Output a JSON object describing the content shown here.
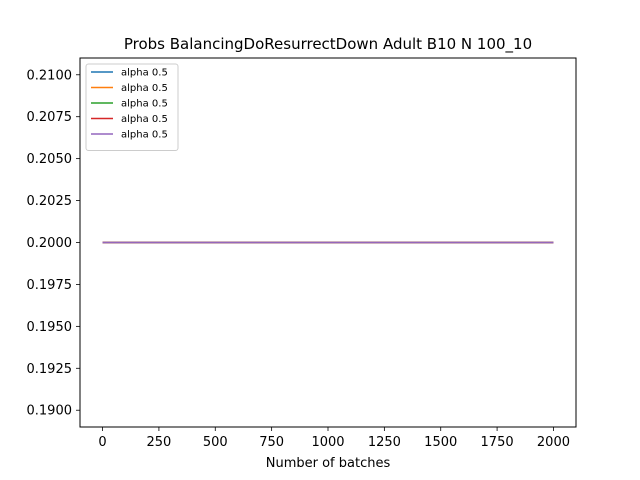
{
  "chart_data": {
    "type": "line",
    "title": "Probs BalancingDoResurrectDown Adult B10 N 100_10",
    "xlabel": "Number of batches",
    "ylabel": "",
    "xlim": [
      -100,
      2100
    ],
    "ylim": [
      0.189,
      0.211
    ],
    "xticks": [
      0,
      250,
      500,
      750,
      1000,
      1250,
      1500,
      1750,
      2000
    ],
    "xtick_labels": [
      "0",
      "250",
      "500",
      "750",
      "1000",
      "1250",
      "1500",
      "1750",
      "2000"
    ],
    "yticks": [
      0.19,
      0.1925,
      0.195,
      0.1975,
      0.2,
      0.2025,
      0.205,
      0.2075,
      0.21
    ],
    "ytick_labels": [
      "0.1900",
      "0.1925",
      "0.1950",
      "0.1975",
      "0.2000",
      "0.2025",
      "0.2050",
      "0.2075",
      "0.2100"
    ],
    "grid": false,
    "legend_position": "top-left",
    "series": [
      {
        "name": "alpha 0.5",
        "color": "#1f77b4",
        "x": [
          0,
          2000
        ],
        "y": [
          0.2,
          0.2
        ]
      },
      {
        "name": "alpha 0.5",
        "color": "#ff7f0e",
        "x": [
          0,
          2000
        ],
        "y": [
          0.2,
          0.2
        ]
      },
      {
        "name": "alpha 0.5",
        "color": "#2ca02c",
        "x": [
          0,
          2000
        ],
        "y": [
          0.2,
          0.2
        ]
      },
      {
        "name": "alpha 0.5",
        "color": "#d62728",
        "x": [
          0,
          2000
        ],
        "y": [
          0.2,
          0.2
        ]
      },
      {
        "name": "alpha 0.5",
        "color": "#9467bd",
        "x": [
          0,
          2000
        ],
        "y": [
          0.2,
          0.2
        ]
      }
    ]
  }
}
